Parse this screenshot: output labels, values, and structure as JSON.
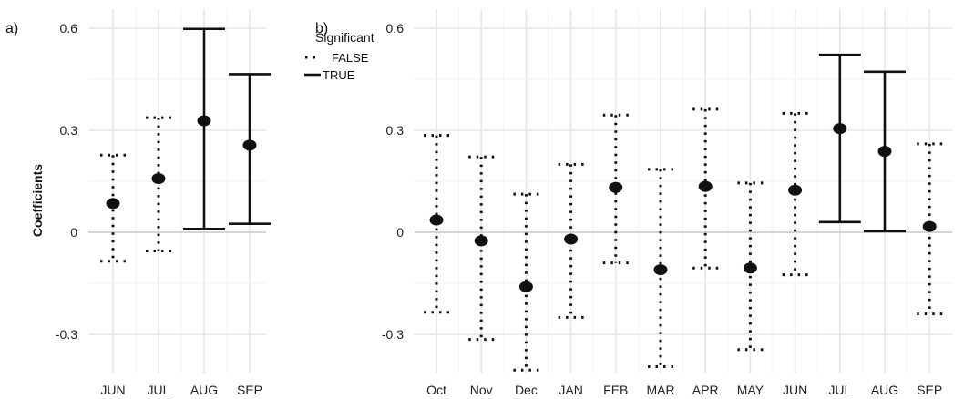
{
  "chart_data": [
    {
      "panel_label": "a)",
      "type": "scatter",
      "ylabel": "Coefficients",
      "ylim": [
        -0.41,
        0.64
      ],
      "y_ticks": [
        {
          "value": -0.3,
          "label": "-0.3"
        },
        {
          "value": 0,
          "label": "0"
        },
        {
          "value": 0.3,
          "label": "0.3"
        },
        {
          "value": 0.6,
          "label": "0.6"
        }
      ],
      "grid": true,
      "categories": [
        "JUN",
        "JUL",
        "AUG",
        "SEP"
      ],
      "estimates": [
        0.085,
        0.158,
        0.328,
        0.256
      ],
      "lower": [
        -0.085,
        -0.055,
        0.01,
        0.025
      ],
      "upper": [
        0.227,
        0.337,
        0.598,
        0.465
      ],
      "significant": [
        false,
        false,
        true,
        true
      ]
    },
    {
      "panel_label": "b)",
      "type": "scatter",
      "ylabel": "",
      "ylim": [
        -0.41,
        0.64
      ],
      "y_ticks": [
        {
          "value": -0.3,
          "label": "-0.3"
        },
        {
          "value": 0,
          "label": "0"
        },
        {
          "value": 0.3,
          "label": "0.3"
        },
        {
          "value": 0.6,
          "label": "0.6"
        }
      ],
      "grid": true,
      "categories": [
        "Oct",
        "Nov",
        "Dec",
        "JAN",
        "FEB",
        "MAR",
        "APR",
        "MAY",
        "JUN",
        "JUL",
        "AUG",
        "SEP"
      ],
      "estimates": [
        0.036,
        -0.025,
        -0.16,
        -0.02,
        0.132,
        -0.11,
        0.135,
        -0.105,
        0.124,
        0.305,
        0.238,
        0.017
      ],
      "lower": [
        -0.235,
        -0.315,
        -0.405,
        -0.25,
        -0.09,
        -0.395,
        -0.105,
        -0.345,
        -0.125,
        0.03,
        0.003,
        -0.24
      ],
      "upper": [
        0.285,
        0.222,
        0.112,
        0.2,
        0.345,
        0.185,
        0.362,
        0.145,
        0.35,
        0.522,
        0.472,
        0.26
      ],
      "significant": [
        false,
        false,
        false,
        false,
        false,
        false,
        false,
        false,
        false,
        true,
        true,
        false
      ]
    }
  ],
  "legend": {
    "title": "Significant",
    "entries": [
      {
        "label": "FALSE",
        "style": "dotted"
      },
      {
        "label": "TRUE",
        "style": "solid"
      }
    ],
    "placement": "top, between panels"
  },
  "colors": {
    "marks": "#111111",
    "grid": "#e6e6e6",
    "zero_line": "#cfcfcf",
    "background": "#ffffff"
  }
}
